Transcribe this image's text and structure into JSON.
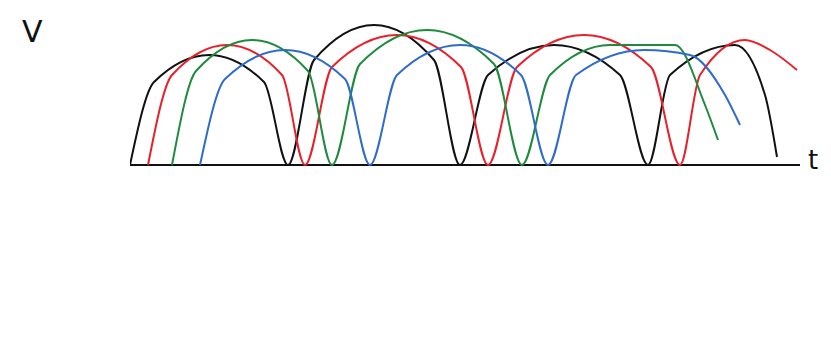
{
  "chart_data": {
    "type": "line",
    "x_label": "t",
    "y_label": "V",
    "xlim": [
      0,
      67
    ],
    "ylim": [
      -17,
      16
    ],
    "xticks": [],
    "yticks": [],
    "tick_labels": false,
    "grid": false,
    "series": [
      {
        "color": "#111111",
        "x": [
          0,
          2.4,
          7.9,
          13.4,
          15.8,
          18.4,
          24.4,
          30.4,
          33,
          35.8,
          42.4,
          49,
          51.8,
          54,
          60.5,
          63.5,
          64.7
        ],
        "values": [
          0,
          8.3,
          11,
          8.3,
          0,
          10.5,
          14,
          10.5,
          0,
          9,
          12,
          9,
          0,
          9,
          12,
          7,
          0.8
        ]
      },
      {
        "color": "#e8202a",
        "x": [
          1.8,
          4.2,
          9.7,
          15.2,
          17.5,
          20.2,
          26.7,
          33.1,
          35.8,
          38.7,
          45.4,
          52.1,
          55,
          57,
          61.5,
          64,
          66.7
        ],
        "values": [
          0,
          9,
          12,
          9,
          0,
          9.8,
          13,
          9.8,
          0,
          9.8,
          13,
          9.8,
          0,
          9,
          12.5,
          11.5,
          9.5
        ]
      },
      {
        "color": "#1e8a3c",
        "x": [
          4.2,
          6.6,
          12.2,
          17.8,
          20.2,
          23,
          29.7,
          36.4,
          39.2,
          42,
          48,
          54.5,
          57.5,
          58.8
        ],
        "values": [
          0,
          9.4,
          12.5,
          9.4,
          0,
          10.1,
          13.5,
          10.1,
          0,
          9,
          12,
          12,
          6,
          2.5
        ]
      },
      {
        "color": "#2e6bcc",
        "x": [
          7,
          9.5,
          15.5,
          21.5,
          24,
          26.7,
          33,
          39.1,
          41.8,
          44.6,
          51.4,
          56,
          59.5,
          61
        ],
        "values": [
          0,
          8.6,
          11.5,
          8.6,
          0,
          9,
          12,
          9,
          0,
          9,
          11.5,
          11,
          7,
          4
        ]
      }
    ]
  }
}
